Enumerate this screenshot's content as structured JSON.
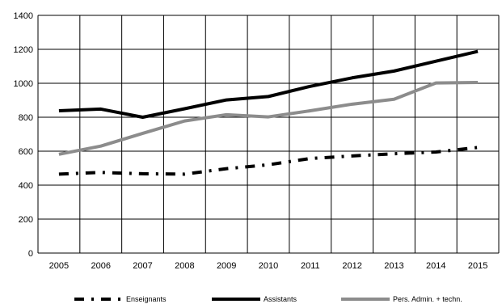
{
  "chart_data": {
    "type": "line",
    "title": "",
    "xlabel": "",
    "ylabel": "",
    "x": [
      "2005",
      "2006",
      "2007",
      "2008",
      "2009",
      "2010",
      "2011",
      "2012",
      "2013",
      "2014",
      "2015"
    ],
    "ylim": [
      0,
      1400
    ],
    "yticks": [
      0,
      200,
      400,
      600,
      800,
      1000,
      1200,
      1400
    ],
    "grid": true,
    "legend": "bottom",
    "series": [
      {
        "name": "Enseignants",
        "values": [
          465,
          475,
          467,
          465,
          497,
          520,
          557,
          572,
          585,
          595,
          622
        ],
        "color": "#000000",
        "style": "dash-dot"
      },
      {
        "name": "Assistants",
        "values": [
          838,
          848,
          800,
          850,
          902,
          922,
          982,
          1032,
          1072,
          1130,
          1188
        ],
        "color": "#000000",
        "style": "solid"
      },
      {
        "name": "Pers. Admin. + techn.",
        "values": [
          582,
          630,
          705,
          778,
          815,
          802,
          838,
          877,
          906,
          1002,
          1005
        ],
        "color": "#8c8c8c",
        "style": "solid"
      }
    ]
  }
}
